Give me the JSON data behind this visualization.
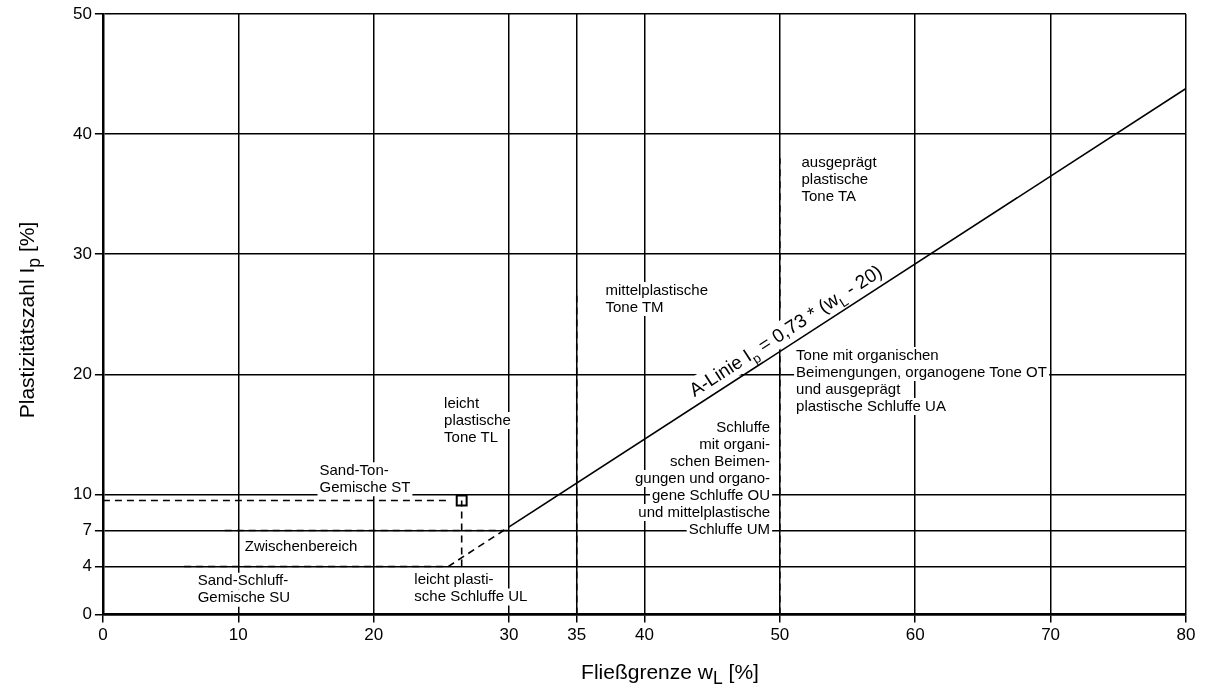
{
  "chart_data": {
    "type": "line",
    "xlabel": "Fließgrenze w$_{L}$ [%]",
    "ylabel": "Plastizitätszahl I$_{p}$ [%]",
    "xlim": [
      0,
      80
    ],
    "xticks": [
      0,
      10,
      20,
      30,
      35,
      40,
      50,
      60,
      70,
      80
    ],
    "ylim": [
      0,
      50
    ],
    "yticks": [
      0,
      4,
      7,
      10,
      20,
      30,
      40,
      50
    ],
    "grid": true,
    "legend": false,
    "series": [
      {
        "name": "A-Linie I$_{p}$ = 0,73 * (w$_{L}$ - 20)",
        "color": "#000000",
        "line_style": "solid",
        "marker": "none",
        "x": [
          30,
          80
        ],
        "values": [
          7.3,
          43.8
        ]
      },
      {
        "type": "line",
        "color": "#000000",
        "line_style": "dashed",
        "marker": "none",
        "x": [
          25.5,
          30
        ],
        "values": [
          4,
          7.3
        ]
      },
      {
        "type": "line",
        "color": "#000000",
        "line_style": "dashed",
        "marker": "none",
        "x": [
          0,
          25.5
        ],
        "values": [
          9.5,
          9.5
        ]
      },
      {
        "type": "line",
        "color": "#000000",
        "line_style": "dashed",
        "marker": "none",
        "x": [
          9,
          30
        ],
        "values": [
          7,
          7
        ]
      },
      {
        "type": "line",
        "color": "#000000",
        "line_style": "dashed",
        "marker": "none",
        "x": [
          6,
          25.5
        ],
        "values": [
          4,
          4
        ]
      },
      {
        "type": "line",
        "color": "#000000",
        "line_style": "dashed",
        "marker": "none",
        "x": [
          26.5,
          26.5
        ],
        "values": [
          4,
          9.5
        ]
      },
      {
        "type": "line",
        "color": "#000000",
        "line_style": "dashed",
        "marker": "none",
        "x": [
          35,
          35
        ],
        "values": [
          0,
          27
        ]
      },
      {
        "type": "line",
        "color": "#000000",
        "line_style": "dashed",
        "marker": "none",
        "x": [
          50,
          50
        ],
        "values": [
          0,
          21.5
        ]
      },
      {
        "type": "line",
        "color": "#000000",
        "line_style": "dashed",
        "marker": "none",
        "x": [
          50,
          50
        ],
        "values": [
          25.5,
          38
        ]
      },
      {
        "type": "scatter",
        "color": "#000000",
        "marker": "square",
        "x": [
          26.5
        ],
        "values": [
          9.5
        ]
      }
    ],
    "annotations": [
      "leicht\nplastische\nTone TL",
      "Sand-Ton-\nGemische ST",
      "Zwischenbereich",
      "Sand-Schluff-\nGemische SU",
      "leicht plasti-\nsche Schluffe UL",
      "mittelplastische\nTone TM",
      "Schluffe\nmit organi-\nschen Beimen-\ngungen und organo-\ngene Schluffe OU\nund mittelplastische\nSchluffe UM",
      "Tone mit organischen\nBeimengungen, organogene Tone OT\nund ausgeprägt\nplastische Schluffe UA",
      "ausgeprägt\nplastische\nTone TA"
    ]
  }
}
